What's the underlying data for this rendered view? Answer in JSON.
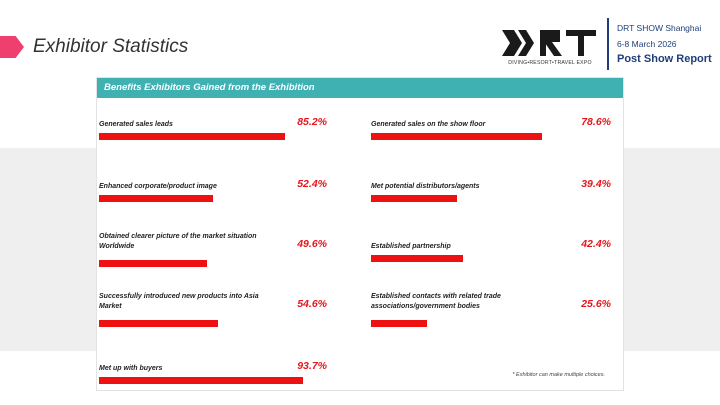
{
  "slide": {
    "title": "Exhibitor Statistics",
    "accent_color": "#ef3f6f"
  },
  "logo": {
    "wordmark": "DRT",
    "tagline": "DIVING•RESORT•TRAVEL EXPO"
  },
  "event": {
    "name": "DRT SHOW Shanghai",
    "dates": "6-8 March 2026",
    "report": "Post Show Report",
    "color": "#1f3e7a"
  },
  "panel": {
    "header": "Benefits Exhibitors Gained from the Exhibition",
    "header_color": "#3fb1b3",
    "footnote": "* Exhibitor can make multiple choices."
  },
  "chart_data": {
    "type": "bar",
    "title": "Benefits Exhibitors Gained from the Exhibition",
    "unit": "%",
    "xlim": [
      0,
      100
    ],
    "bar_color": "#ee1111",
    "categories": [
      "Generated sales leads",
      "Generated sales on the show floor",
      "Enhanced corporate/product image",
      "Met potential distributors/agents",
      "Obtained clearer picture of the market situation Worldwide",
      "Established partnership",
      "Successfully introduced new products into Asia Market",
      "Established contacts with related trade associations/government bodies",
      "Met up with buyers"
    ],
    "values": [
      85.2,
      78.6,
      52.4,
      39.4,
      49.6,
      42.4,
      54.6,
      25.6,
      93.7
    ],
    "value_labels": [
      "85.2%",
      "78.6%",
      "52.4%",
      "39.4%",
      "49.6%",
      "42.4%",
      "54.6%",
      "25.6%",
      "93.7%"
    ]
  }
}
